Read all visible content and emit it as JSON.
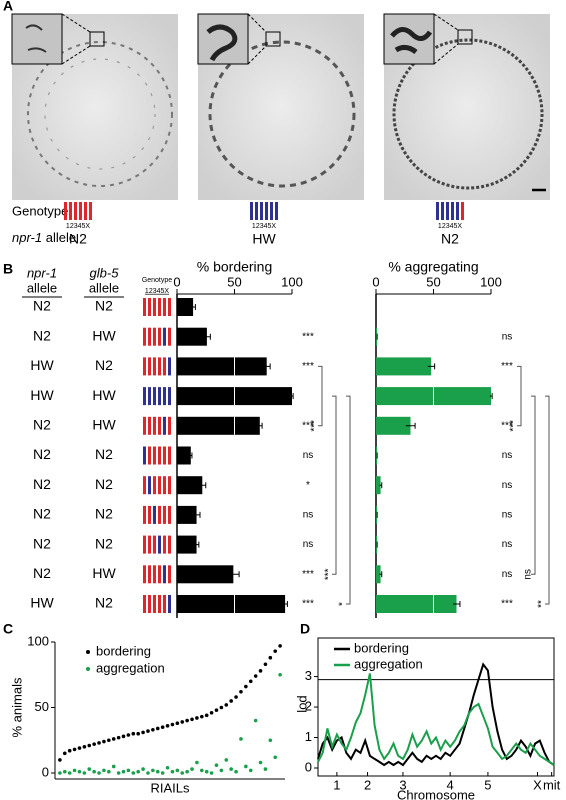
{
  "panel_labels": [
    "A",
    "B",
    "C",
    "D"
  ],
  "colors": {
    "N2": "#e0262b",
    "HW": "#2e3192"
  },
  "panel_a": {
    "genotype_label": "Genotype",
    "chromosomes": "12345X",
    "allele_gene": "npr-1",
    "allele_word": "allele",
    "strains": [
      {
        "genotype": [
          "N2",
          "N2",
          "N2",
          "N2",
          "N2",
          "N2"
        ],
        "allele": "N2"
      },
      {
        "genotype": [
          "HW",
          "HW",
          "HW",
          "HW",
          "HW",
          "HW"
        ],
        "allele": "HW"
      },
      {
        "genotype": [
          "HW",
          "HW",
          "HW",
          "HW",
          "HW",
          "N2"
        ],
        "allele": "N2"
      }
    ]
  },
  "panel_b": {
    "npr1_gene": "npr-1",
    "glb5_gene": "glb-5",
    "allele_word": "allele",
    "genotype_header": "Genotype",
    "chromosomes": "12345X",
    "npr1": [
      "N2",
      "N2",
      "HW",
      "HW",
      "N2",
      "N2",
      "N2",
      "N2",
      "N2",
      "N2",
      "HW"
    ],
    "glb5": [
      "N2",
      "HW",
      "N2",
      "HW",
      "HW",
      "N2",
      "N2",
      "N2",
      "N2",
      "HW",
      "N2"
    ],
    "genotypes": [
      [
        "N2",
        "N2",
        "N2",
        "N2",
        "N2",
        "N2"
      ],
      [
        "N2",
        "N2",
        "N2",
        "N2",
        "HW",
        "N2"
      ],
      [
        "N2",
        "N2",
        "N2",
        "N2",
        "N2",
        "HW"
      ],
      [
        "HW",
        "HW",
        "HW",
        "HW",
        "HW",
        "HW"
      ],
      [
        "N2",
        "N2",
        "N2",
        "N2",
        "HW",
        "N2"
      ],
      [
        "HW",
        "N2",
        "N2",
        "N2",
        "N2",
        "N2"
      ],
      [
        "N2",
        "HW",
        "N2",
        "N2",
        "N2",
        "N2"
      ],
      [
        "N2",
        "N2",
        "HW",
        "N2",
        "N2",
        "N2"
      ],
      [
        "N2",
        "N2",
        "N2",
        "HW",
        "N2",
        "N2"
      ],
      [
        "N2",
        "N2",
        "N2",
        "N2",
        "HW",
        "N2"
      ],
      [
        "N2",
        "N2",
        "N2",
        "N2",
        "N2",
        "HW"
      ]
    ]
  },
  "chart_data": [
    {
      "type": "hbar",
      "title": "% bordering",
      "categories": [
        null,
        null,
        null,
        null,
        null,
        null,
        null,
        null,
        null,
        null,
        null
      ],
      "values": [
        14,
        26,
        78,
        100,
        72,
        12,
        22,
        17,
        17,
        49,
        94
      ],
      "errors": [
        2,
        3,
        3,
        1,
        2,
        1,
        3,
        3,
        2,
        5,
        2
      ],
      "color": "#000000",
      "xlim": [
        0,
        100
      ],
      "xticks": [
        0,
        50,
        100
      ],
      "annotations": [
        null,
        "***",
        "***",
        null,
        "***",
        "ns",
        "*",
        "ns",
        "ns",
        "***",
        "***"
      ],
      "brackets": [
        "***",
        "***",
        "*"
      ]
    },
    {
      "type": "hbar",
      "title": "% aggregating",
      "categories": [
        null,
        null,
        null,
        null,
        null,
        null,
        null,
        null,
        null,
        null,
        null
      ],
      "values": [
        0,
        1,
        48,
        100,
        30,
        1,
        4,
        1,
        1,
        4,
        70
      ],
      "errors": [
        0,
        0,
        3,
        1,
        4,
        0,
        1,
        0,
        0,
        1,
        3
      ],
      "color": "#1a9f4a",
      "xlim": [
        0,
        100
      ],
      "xticks": [
        0,
        50,
        100
      ],
      "annotations": [
        null,
        "ns",
        "***",
        null,
        "***",
        "ns",
        "ns",
        "ns",
        "ns",
        "ns",
        "***"
      ],
      "brackets": [
        "***",
        "ns",
        "**"
      ]
    },
    {
      "type": "scatter",
      "ylabel": "% animals",
      "xlabel": "RIAILs",
      "x": [
        1,
        2,
        3,
        4,
        5,
        6,
        7,
        8,
        9,
        10,
        11,
        12,
        13,
        14,
        15,
        16,
        17,
        18,
        19,
        20,
        21,
        22,
        23,
        24,
        25,
        26,
        27,
        28,
        29,
        30,
        31,
        32,
        33,
        34,
        35,
        36,
        37,
        38,
        39,
        40,
        41,
        42,
        43,
        44,
        45,
        46
      ],
      "xlim": [
        0,
        47
      ],
      "ylim": [
        0,
        100
      ],
      "yticks": [
        0,
        50,
        100
      ],
      "series": [
        {
          "name": "bordering",
          "color": "#000000",
          "values": [
            10,
            15,
            17,
            18,
            19,
            20,
            21,
            22,
            23,
            24,
            25,
            26,
            27,
            28,
            29,
            30,
            30,
            31,
            32,
            33,
            34,
            35,
            36,
            37,
            38,
            39,
            40,
            41,
            42,
            43,
            44,
            46,
            48,
            50,
            52,
            55,
            58,
            62,
            66,
            70,
            74,
            78,
            83,
            88,
            93,
            97
          ]
        },
        {
          "name": "aggregation",
          "color": "#1a9f4a",
          "values": [
            0,
            1,
            0,
            2,
            1,
            0,
            3,
            1,
            0,
            2,
            1,
            5,
            0,
            1,
            2,
            0,
            1,
            3,
            0,
            2,
            1,
            0,
            4,
            1,
            2,
            0,
            1,
            3,
            8,
            2,
            1,
            0,
            6,
            2,
            10,
            3,
            1,
            26,
            5,
            2,
            40,
            8,
            3,
            25,
            12,
            75
          ]
        }
      ]
    },
    {
      "type": "line",
      "ylabel": "lod",
      "xlabel": "Chromosome",
      "x": [
        0,
        2,
        4,
        6,
        8,
        10,
        12,
        14,
        16,
        18,
        20,
        22,
        24,
        26,
        28,
        30,
        32,
        34,
        36,
        38,
        40,
        42,
        44,
        46,
        48,
        50,
        52,
        54,
        56,
        58,
        60,
        62,
        64,
        66,
        68,
        70,
        72,
        74,
        76,
        78,
        80,
        82,
        84,
        86,
        88,
        90,
        92,
        94,
        96,
        98,
        100
      ],
      "xlim": [
        0,
        100
      ],
      "xticks": [
        {
          "value": 8,
          "label": "1"
        },
        {
          "value": 21,
          "label": "2"
        },
        {
          "value": 36,
          "label": "3"
        },
        {
          "value": 56,
          "label": "4"
        },
        {
          "value": 72,
          "label": "5"
        },
        {
          "value": 93,
          "label": "X"
        },
        {
          "value": 99,
          "label": "mit"
        }
      ],
      "ylim": [
        0,
        4.2
      ],
      "yticks": [
        0,
        1,
        2,
        3
      ],
      "threshold": 2.9,
      "series": [
        {
          "name": "bordering",
          "color": "#000000",
          "values": [
            0.3,
            0.8,
            1.0,
            0.6,
            0.9,
            1.0,
            0.5,
            0.3,
            0.6,
            0.5,
            0.9,
            0.4,
            0.3,
            0.2,
            0.1,
            0.2,
            0.1,
            0.2,
            0.1,
            0.3,
            0.5,
            0.3,
            0.2,
            0.4,
            0.3,
            0.4,
            0.3,
            0.5,
            0.4,
            0.6,
            0.8,
            1.3,
            1.8,
            2.4,
            2.9,
            3.4,
            3.2,
            2.0,
            1.2,
            0.6,
            0.3,
            0.4,
            0.6,
            0.9,
            0.7,
            0.4,
            0.8,
            0.9,
            0.5,
            0.2,
            0.1
          ]
        },
        {
          "name": "aggregation",
          "color": "#1a9f4a",
          "values": [
            0.2,
            0.5,
            1.3,
            0.7,
            1.1,
            0.8,
            0.6,
            1.0,
            1.5,
            1.8,
            2.4,
            3.1,
            1.4,
            0.6,
            0.3,
            0.5,
            0.8,
            0.4,
            0.3,
            0.6,
            1.1,
            0.7,
            0.9,
            1.2,
            0.8,
            1.0,
            0.6,
            0.9,
            0.7,
            0.9,
            1.2,
            1.4,
            1.8,
            2.0,
            2.1,
            1.7,
            1.3,
            0.7,
            0.5,
            0.3,
            0.4,
            0.6,
            0.8,
            0.6,
            0.5,
            0.8,
            0.6,
            0.4,
            0.3,
            0.2,
            0.1
          ]
        }
      ]
    }
  ]
}
